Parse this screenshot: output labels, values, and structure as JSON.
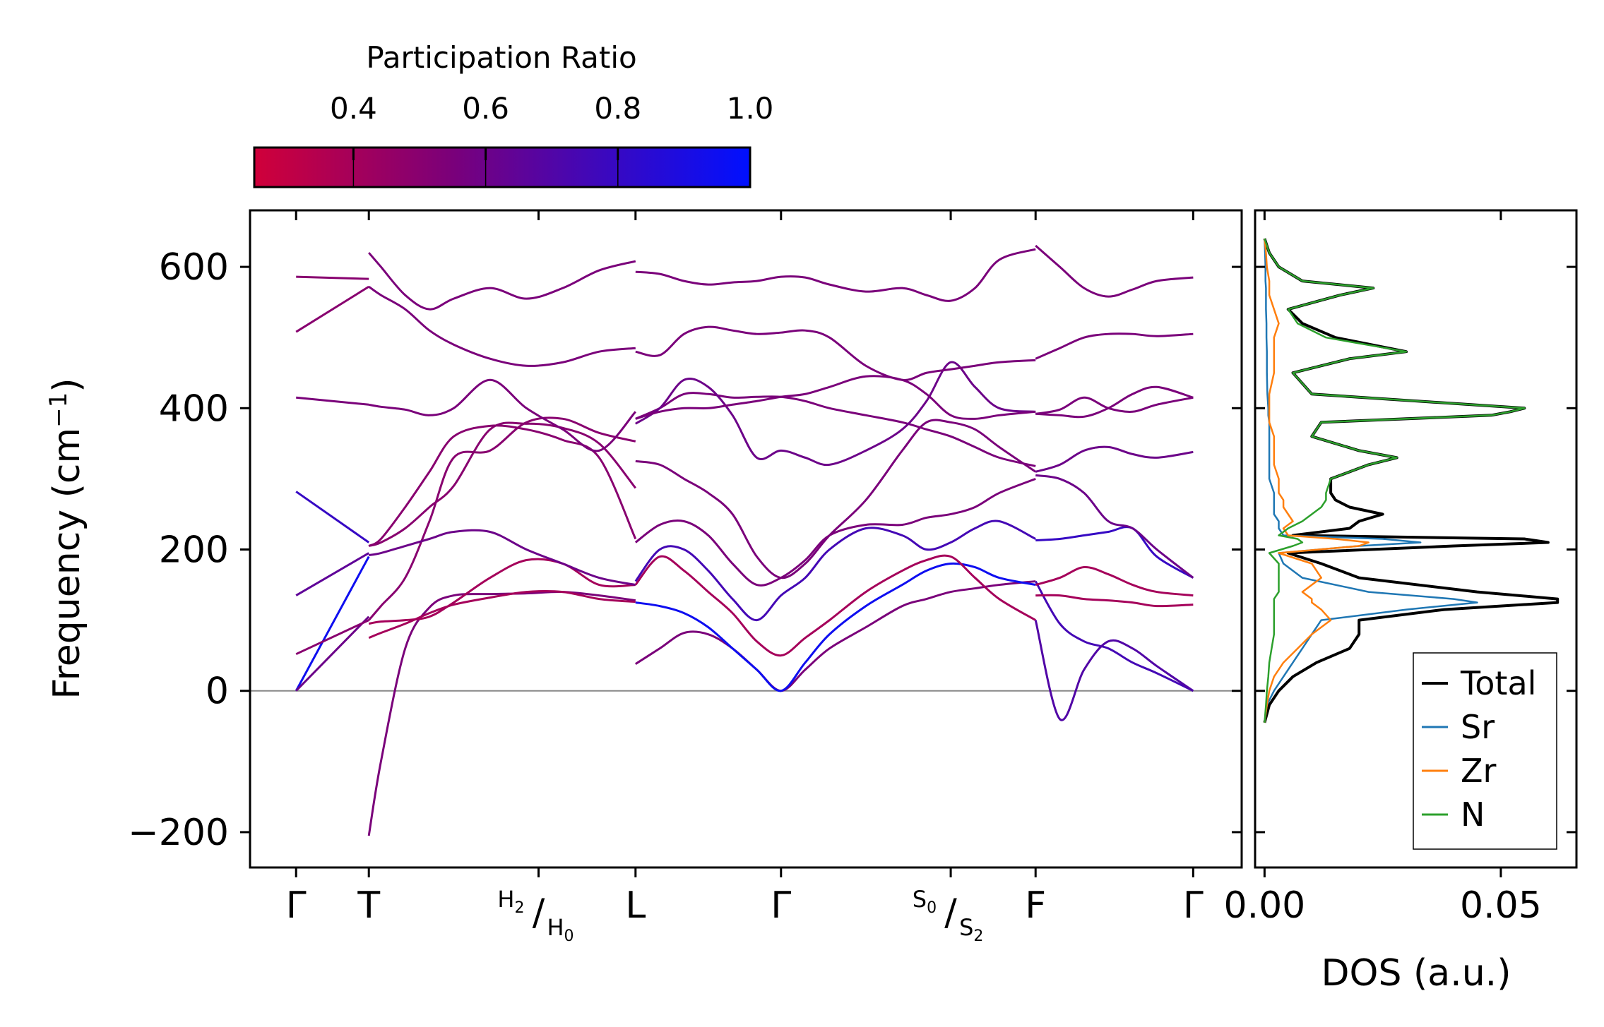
{
  "chart_data": [
    {
      "type": "line",
      "name": "phonon-band-structure",
      "ylabel": "Frequency (cm",
      "ylabel_sup": "−1",
      "ylabel_close": ")",
      "ylim": [
        -250,
        680
      ],
      "yticks": [
        -200,
        0,
        200,
        400,
        600
      ],
      "ytick_labels": [
        "−200",
        "0",
        "200",
        "400",
        "600"
      ],
      "kpoint_labels": [
        {
          "label": "Γ",
          "kind": "plain"
        },
        {
          "label": "T",
          "kind": "plain"
        },
        {
          "label": "",
          "kind": "split",
          "top": "H",
          "top_sub": "2",
          "bottom": "H",
          "bottom_sub": "0"
        },
        {
          "label": "L",
          "kind": "plain"
        },
        {
          "label": "Γ",
          "kind": "plain"
        },
        {
          "label": "",
          "kind": "split",
          "top": "S",
          "top_sub": "0",
          "bottom": "S",
          "bottom_sub": "2"
        },
        {
          "label": "F",
          "kind": "plain"
        },
        {
          "label": "Γ",
          "kind": "plain"
        }
      ],
      "kpoint_positions": [
        0,
        0.3,
        1.0,
        1.4,
        2.0,
        2.7,
        3.05,
        3.7
      ],
      "x_range": [
        -0.19,
        3.9
      ],
      "colorbar": {
        "title": "Participation Ratio",
        "range": [
          0.25,
          1.0
        ],
        "ticks": [
          0.4,
          0.6,
          0.8,
          1.0
        ],
        "tick_labels": [
          "0.4",
          "0.6",
          "0.8",
          "1.0"
        ],
        "color_low": "#d0003a",
        "color_mid": "#7a007a",
        "color_high": "#0010ff"
      },
      "segments": [
        {
          "x": [
            0,
            0.3
          ],
          "series": [
            {
              "y": [
                0,
                190
              ],
              "pr": 0.95
            },
            {
              "y": [
                0,
                105
              ],
              "pr": 0.6
            },
            {
              "y": [
                52,
                100
              ],
              "pr": 0.5
            },
            {
              "y": [
                135,
                195
              ],
              "pr": 0.65
            },
            {
              "y": [
                282,
                210
              ],
              "pr": 0.8
            },
            {
              "y": [
                415,
                405
              ],
              "pr": 0.55
            },
            {
              "y": [
                508,
                572
              ],
              "pr": 0.5
            },
            {
              "y": [
                586,
                583
              ],
              "pr": 0.5
            }
          ]
        },
        {
          "x": [
            0.3,
            0.35,
            0.45,
            0.55,
            0.65,
            0.8,
            0.95,
            1.1,
            1.25,
            1.4
          ],
          "series": [
            {
              "y": [
                -205,
                -100,
                60,
                118,
                135,
                137,
                138,
                140,
                135,
                128
              ],
              "pr": 0.55
            },
            {
              "y": [
                75,
                82,
                95,
                110,
                122,
                132,
                140,
                140,
                130,
                126
              ],
              "pr": 0.4
            },
            {
              "y": [
                95,
                98,
                100,
                105,
                125,
                160,
                185,
                180,
                150,
                150
              ],
              "pr": 0.4
            },
            {
              "y": [
                100,
                120,
                160,
                240,
                330,
                340,
                380,
                385,
                365,
                353
              ],
              "pr": 0.5
            },
            {
              "y": [
                192,
                195,
                205,
                215,
                225,
                225,
                200,
                180,
                160,
                150
              ],
              "pr": 0.6
            },
            {
              "y": [
                205,
                215,
                260,
                310,
                360,
                375,
                370,
                355,
                330,
                215
              ],
              "pr": 0.5
            },
            {
              "y": [
                205,
                210,
                230,
                260,
                290,
                370,
                378,
                372,
                350,
                287
              ],
              "pr": 0.5
            },
            {
              "y": [
                405,
                402,
                398,
                390,
                400,
                440,
                400,
                370,
                340,
                395
              ],
              "pr": 0.55
            },
            {
              "y": [
                572,
                560,
                540,
                510,
                490,
                470,
                460,
                465,
                480,
                485
              ],
              "pr": 0.55
            },
            {
              "y": [
                620,
                600,
                560,
                540,
                555,
                570,
                555,
                570,
                595,
                608
              ],
              "pr": 0.55
            }
          ]
        },
        {
          "x": [
            1.4,
            1.5,
            1.6,
            1.7,
            1.8,
            1.9,
            2.0,
            2.1,
            2.2,
            2.35,
            2.5,
            2.6,
            2.7,
            2.8,
            2.9,
            3.05
          ],
          "series": [
            {
              "y": [
                38,
                60,
                82,
                80,
                60,
                30,
                0,
                30,
                60,
                90,
                120,
                130,
                140,
                145,
                150,
                155
              ],
              "pr": 0.55
            },
            {
              "y": [
                125,
                120,
                110,
                90,
                60,
                30,
                0,
                40,
                80,
                120,
                150,
                170,
                180,
                175,
                160,
                150
              ],
              "pr": 0.95
            },
            {
              "y": [
                150,
                190,
                170,
                140,
                110,
                70,
                50,
                75,
                100,
                140,
                170,
                185,
                190,
                160,
                130,
                100
              ],
              "pr": 0.4
            },
            {
              "y": [
                155,
                200,
                200,
                170,
                130,
                100,
                135,
                160,
                200,
                230,
                220,
                200,
                210,
                230,
                240,
                215
              ],
              "pr": 0.75
            },
            {
              "y": [
                210,
                235,
                240,
                220,
                180,
                150,
                160,
                185,
                220,
                235,
                235,
                245,
                250,
                260,
                280,
                300
              ],
              "pr": 0.55
            },
            {
              "y": [
                325,
                320,
                300,
                280,
                250,
                190,
                160,
                180,
                220,
                270,
                340,
                380,
                380,
                370,
                345,
                310
              ],
              "pr": 0.55
            },
            {
              "y": [
                385,
                400,
                420,
                420,
                415,
                416,
                416,
                410,
                400,
                390,
                380,
                370,
                360,
                345,
                330,
                318
              ],
              "pr": 0.55
            },
            {
              "y": [
                378,
                400,
                440,
                430,
                390,
                330,
                340,
                330,
                320,
                340,
                370,
                410,
                465,
                430,
                400,
                395
              ],
              "pr": 0.6
            },
            {
              "y": [
                385,
                395,
                400,
                400,
                405,
                410,
                416,
                420,
                430,
                445,
                440,
                420,
                390,
                385,
                390,
                395
              ],
              "pr": 0.55
            },
            {
              "y": [
                480,
                475,
                505,
                515,
                510,
                505,
                507,
                510,
                500,
                460,
                440,
                450,
                455,
                460,
                465,
                468
              ],
              "pr": 0.55
            },
            {
              "y": [
                593,
                590,
                580,
                575,
                578,
                580,
                586,
                585,
                575,
                565,
                570,
                560,
                552,
                570,
                610,
                625
              ],
              "pr": 0.55
            }
          ]
        },
        {
          "x": [
            3.05,
            3.15,
            3.25,
            3.35,
            3.45,
            3.55,
            3.7
          ],
          "series": [
            {
              "y": [
                155,
                95,
                70,
                60,
                40,
                25,
                0
              ],
              "pr": 0.75
            },
            {
              "y": [
                100,
                -40,
                30,
                70,
                60,
                35,
                0
              ],
              "pr": 0.7
            },
            {
              "y": [
                135,
                135,
                130,
                128,
                125,
                120,
                122
              ],
              "pr": 0.4
            },
            {
              "y": [
                150,
                160,
                175,
                165,
                150,
                140,
                135
              ],
              "pr": 0.4
            },
            {
              "y": [
                213,
                215,
                220,
                225,
                230,
                190,
                160
              ],
              "pr": 0.8
            },
            {
              "y": [
                305,
                300,
                280,
                240,
                230,
                200,
                160
              ],
              "pr": 0.6
            },
            {
              "y": [
                310,
                320,
                340,
                345,
                335,
                330,
                338
              ],
              "pr": 0.6
            },
            {
              "y": [
                392,
                390,
                388,
                400,
                420,
                430,
                415
              ],
              "pr": 0.55
            },
            {
              "y": [
                392,
                398,
                415,
                400,
                395,
                405,
                415
              ],
              "pr": 0.55
            },
            {
              "y": [
                470,
                485,
                500,
                505,
                505,
                502,
                505
              ],
              "pr": 0.55
            },
            {
              "y": [
                630,
                600,
                570,
                558,
                568,
                580,
                585
              ],
              "pr": 0.55
            }
          ]
        }
      ]
    },
    {
      "type": "line",
      "name": "density-of-states",
      "xlabel": "DOS (a.u.)",
      "xlim": [
        -0.002,
        0.066
      ],
      "xticks": [
        0.0,
        0.05
      ],
      "xtick_labels": [
        "0.00",
        "0.05"
      ],
      "ylim": [
        -250,
        680
      ],
      "legend_position": "bottom-right",
      "freq": [
        -45,
        -20,
        0,
        20,
        40,
        60,
        80,
        100,
        115,
        125,
        130,
        140,
        160,
        180,
        195,
        205,
        210,
        215,
        220,
        230,
        240,
        250,
        260,
        270,
        280,
        300,
        320,
        330,
        340,
        360,
        380,
        390,
        395,
        400,
        420,
        450,
        470,
        480,
        500,
        520,
        540,
        560,
        570,
        580,
        600,
        620,
        640
      ],
      "series": [
        {
          "name": "Total",
          "color": "#000000",
          "values": [
            0,
            0.001,
            0.003,
            0.006,
            0.011,
            0.018,
            0.02,
            0.02,
            0.038,
            0.062,
            0.062,
            0.045,
            0.02,
            0.012,
            0.005,
            0.04,
            0.06,
            0.055,
            0.006,
            0.018,
            0.02,
            0.025,
            0.018,
            0.015,
            0.014,
            0.014,
            0.022,
            0.028,
            0.02,
            0.01,
            0.012,
            0.048,
            0.052,
            0.055,
            0.01,
            0.006,
            0.018,
            0.03,
            0.015,
            0.008,
            0.005,
            0.016,
            0.023,
            0.008,
            0.003,
            0.001,
            0
          ]
        },
        {
          "name": "Sr",
          "color": "#1f77b4",
          "values": [
            0,
            0.0005,
            0.002,
            0.004,
            0.006,
            0.008,
            0.01,
            0.012,
            0.03,
            0.045,
            0.04,
            0.022,
            0.008,
            0.004,
            0.003,
            0.02,
            0.033,
            0.025,
            0.004,
            0.003,
            0.003,
            0.002,
            0.002,
            0.002,
            0.002,
            0.001,
            0.001,
            0.001,
            0.001,
            0.001,
            0.001,
            0.0008,
            0.0008,
            0.0008,
            0.0006,
            0.0005,
            0.0005,
            0.0005,
            0.0004,
            0.0004,
            0.0003,
            0.0003,
            0.0003,
            0.0002,
            0.0002,
            0.0001,
            0
          ]
        },
        {
          "name": "Zr",
          "color": "#ff7f0e",
          "values": [
            0,
            0.0005,
            0.001,
            0.002,
            0.004,
            0.007,
            0.01,
            0.014,
            0.012,
            0.01,
            0.01,
            0.008,
            0.012,
            0.01,
            0.003,
            0.02,
            0.022,
            0.015,
            0.005,
            0.004,
            0.006,
            0.005,
            0.004,
            0.004,
            0.003,
            0.003,
            0.002,
            0.002,
            0.002,
            0.002,
            0.001,
            0.001,
            0.001,
            0.001,
            0.001,
            0.002,
            0.002,
            0.002,
            0.002,
            0.003,
            0.002,
            0.001,
            0.001,
            0.001,
            0.0005,
            0.0003,
            0
          ]
        },
        {
          "name": "N",
          "color": "#2ca02c",
          "values": [
            0,
            0.0003,
            0.0005,
            0.0008,
            0.001,
            0.0015,
            0.002,
            0.002,
            0.002,
            0.002,
            0.002,
            0.003,
            0.003,
            0.003,
            0.001,
            0.006,
            0.008,
            0.007,
            0.003,
            0.005,
            0.008,
            0.01,
            0.012,
            0.013,
            0.013,
            0.014,
            0.022,
            0.028,
            0.02,
            0.01,
            0.012,
            0.048,
            0.052,
            0.055,
            0.01,
            0.006,
            0.018,
            0.03,
            0.013,
            0.007,
            0.005,
            0.016,
            0.023,
            0.008,
            0.003,
            0.001,
            0
          ]
        }
      ]
    }
  ]
}
